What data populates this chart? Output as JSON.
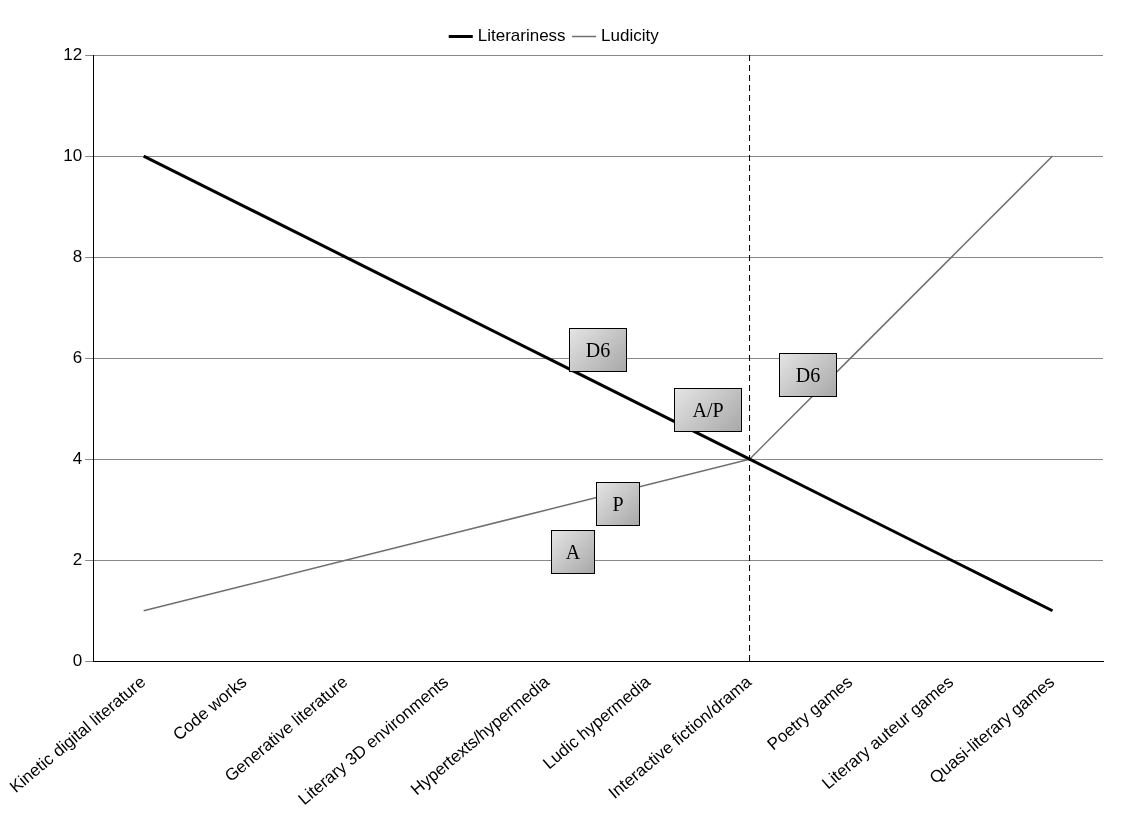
{
  "chart_data": {
    "type": "line",
    "categories": [
      "Kinetic digital literature",
      "Code works",
      "Generative literature",
      "Literary 3D environments",
      "Hypertexts/hypermedia",
      "Ludic hypermedia",
      "Interactive fiction/drama",
      "Poetry games",
      "Literary auteur games",
      "Quasi-literary games"
    ],
    "series": [
      {
        "name": "Literariness",
        "color": "#000000",
        "values": [
          10,
          9,
          8,
          7,
          6,
          5,
          4,
          3,
          2,
          1
        ]
      },
      {
        "name": "Ludicity",
        "color": "#707070",
        "values": [
          1,
          1.5,
          2,
          2.5,
          3,
          3.5,
          4,
          6,
          8,
          10
        ]
      }
    ],
    "ylim": [
      0,
      12
    ],
    "yticks": [
      0,
      2,
      4,
      6,
      8,
      10,
      12
    ],
    "grid": "y",
    "legend": "top",
    "marker": "none",
    "line_style": "solid",
    "ref_lines": [
      {
        "axis": "x",
        "value": "Interactive fiction/drama",
        "line_style": "dashed",
        "color": "#000000"
      }
    ],
    "annotations": [
      "D6",
      "A/P",
      "D6",
      "A",
      "P"
    ]
  }
}
